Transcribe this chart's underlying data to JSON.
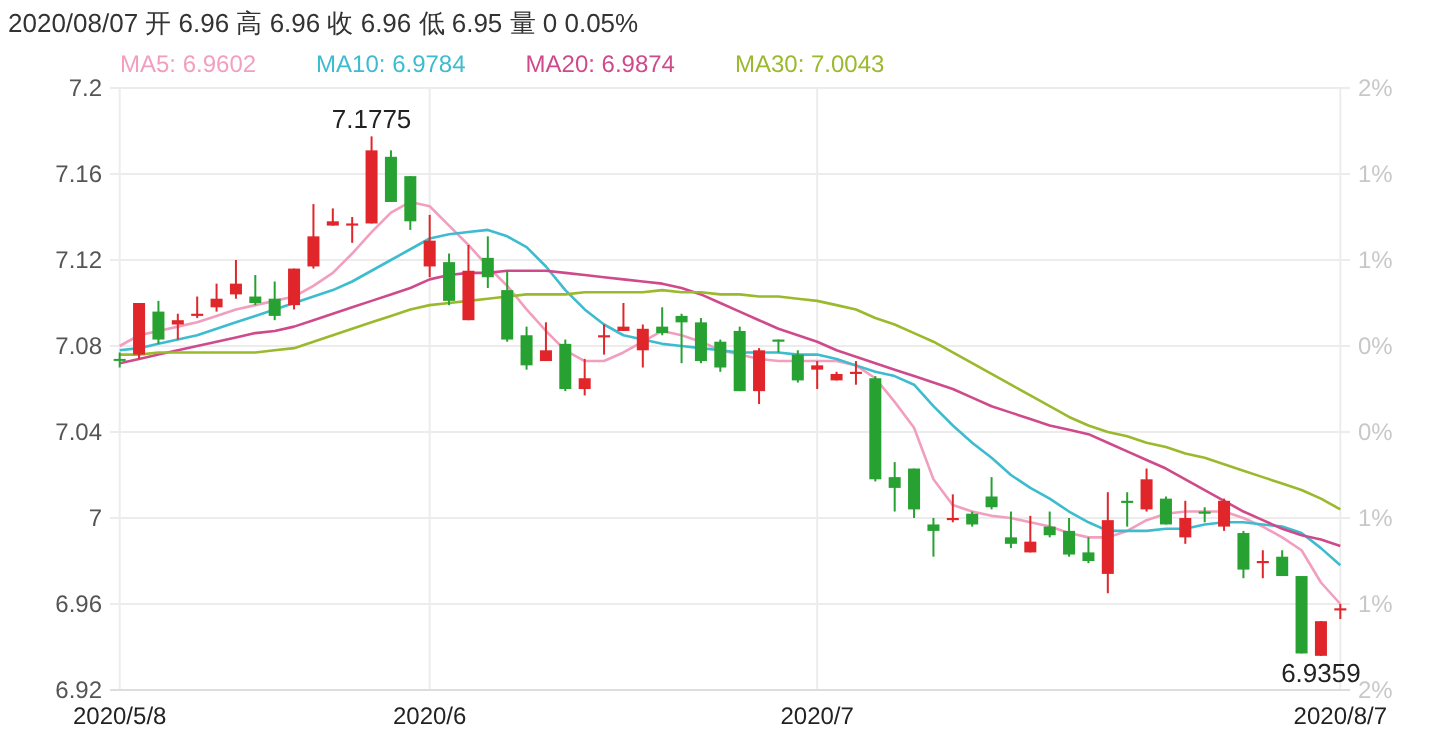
{
  "chart_data": {
    "type": "candlestick",
    "title": "2020/08/07 开 6.96 高 6.96 收 6.96 低 6.95 量 0 0.05%",
    "categories": [
      "2020/5/8",
      null,
      null,
      null,
      null,
      null,
      null,
      null,
      null,
      null,
      null,
      null,
      null,
      null,
      null,
      null,
      "2020/6",
      null,
      null,
      null,
      null,
      null,
      null,
      null,
      null,
      null,
      null,
      null,
      null,
      null,
      null,
      null,
      null,
      null,
      null,
      null,
      "2020/7",
      null,
      null,
      null,
      null,
      null,
      null,
      null,
      null,
      null,
      null,
      null,
      null,
      null,
      null,
      null,
      null,
      null,
      null,
      null,
      null,
      null,
      null,
      null,
      null,
      null,
      null,
      "2020/8/7"
    ],
    "ohlc": [
      [
        7.074,
        7.077,
        7.07,
        7.074
      ],
      [
        7.076,
        7.1,
        7.074,
        7.1
      ],
      [
        7.096,
        7.101,
        7.081,
        7.083
      ],
      [
        7.09,
        7.095,
        7.083,
        7.092
      ],
      [
        7.094,
        7.103,
        7.093,
        7.095
      ],
      [
        7.098,
        7.109,
        7.096,
        7.102
      ],
      [
        7.104,
        7.12,
        7.102,
        7.109
      ],
      [
        7.103,
        7.113,
        7.099,
        7.1
      ],
      [
        7.102,
        7.11,
        7.092,
        7.094
      ],
      [
        7.099,
        7.116,
        7.097,
        7.116
      ],
      [
        7.117,
        7.146,
        7.116,
        7.131
      ],
      [
        7.136,
        7.144,
        7.136,
        7.138
      ],
      [
        7.136,
        7.14,
        7.128,
        7.137
      ],
      [
        7.137,
        7.1775,
        7.137,
        7.171
      ],
      [
        7.168,
        7.171,
        7.147,
        7.147
      ],
      [
        7.159,
        7.159,
        7.134,
        7.138
      ],
      [
        7.117,
        7.141,
        7.112,
        7.129
      ],
      [
        7.119,
        7.123,
        7.099,
        7.101
      ],
      [
        7.092,
        7.127,
        7.092,
        7.115
      ],
      [
        7.121,
        7.131,
        7.107,
        7.112
      ],
      [
        7.106,
        7.115,
        7.082,
        7.083
      ],
      [
        7.085,
        7.089,
        7.069,
        7.071
      ],
      [
        7.073,
        7.091,
        7.073,
        7.078
      ],
      [
        7.081,
        7.083,
        7.059,
        7.06
      ],
      [
        7.06,
        7.074,
        7.057,
        7.065
      ],
      [
        7.084,
        7.09,
        7.076,
        7.085
      ],
      [
        7.087,
        7.1,
        7.087,
        7.089
      ],
      [
        7.078,
        7.09,
        7.07,
        7.088
      ],
      [
        7.089,
        7.098,
        7.085,
        7.086
      ],
      [
        7.094,
        7.095,
        7.072,
        7.091
      ],
      [
        7.091,
        7.093,
        7.072,
        7.073
      ],
      [
        7.082,
        7.083,
        7.068,
        7.07
      ],
      [
        7.087,
        7.089,
        7.059,
        7.059
      ],
      [
        7.059,
        7.079,
        7.053,
        7.078
      ],
      [
        7.083,
        7.083,
        7.077,
        7.082
      ],
      [
        7.076,
        7.078,
        7.063,
        7.064
      ],
      [
        7.069,
        7.073,
        7.06,
        7.071
      ],
      [
        7.064,
        7.068,
        7.064,
        7.067
      ],
      [
        7.067,
        7.073,
        7.062,
        7.068
      ],
      [
        7.065,
        7.066,
        7.017,
        7.018
      ],
      [
        7.019,
        7.026,
        7.003,
        7.014
      ],
      [
        7.023,
        7.023,
        7.0,
        7.004
      ],
      [
        6.997,
        7.0,
        6.982,
        6.994
      ],
      [
        6.999,
        7.011,
        6.998,
        7.0
      ],
      [
        7.002,
        7.003,
        6.996,
        6.997
      ],
      [
        7.01,
        7.019,
        7.004,
        7.005
      ],
      [
        6.991,
        7.003,
        6.986,
        6.988
      ],
      [
        6.984,
        7.001,
        6.984,
        6.989
      ],
      [
        6.996,
        7.003,
        6.991,
        6.992
      ],
      [
        6.994,
        7.0,
        6.982,
        6.983
      ],
      [
        6.984,
        6.991,
        6.979,
        6.98
      ],
      [
        6.974,
        7.012,
        6.965,
        6.999
      ],
      [
        7.008,
        7.012,
        6.996,
        7.007
      ],
      [
        7.004,
        7.023,
        7.003,
        7.018
      ],
      [
        7.009,
        7.01,
        6.997,
        6.997
      ],
      [
        6.991,
        7.008,
        6.988,
        7.0
      ],
      [
        7.003,
        7.005,
        6.998,
        7.002
      ],
      [
        6.996,
        7.009,
        6.994,
        7.008
      ],
      [
        6.993,
        6.994,
        6.972,
        6.976
      ],
      [
        6.979,
        6.985,
        6.972,
        6.98
      ],
      [
        6.982,
        6.985,
        6.973,
        6.973
      ],
      [
        6.973,
        6.973,
        6.937,
        6.937
      ],
      [
        6.9359,
        6.952,
        6.9359,
        6.952
      ],
      [
        6.957,
        6.96,
        6.953,
        6.958
      ]
    ],
    "colors": [
      "#27a132",
      "#e0262a",
      "#27a132",
      "#e0262a",
      "#e0262a",
      "#e0262a",
      "#e0262a",
      "#27a132",
      "#27a132",
      "#e0262a",
      "#e0262a",
      "#e0262a",
      "#e0262a",
      "#e0262a",
      "#27a132",
      "#27a132",
      "#e0262a",
      "#27a132",
      "#e0262a",
      "#27a132",
      "#27a132",
      "#27a132",
      "#e0262a",
      "#27a132",
      "#e0262a",
      "#e0262a",
      "#e0262a",
      "#e0262a",
      "#27a132",
      "#27a132",
      "#27a132",
      "#27a132",
      "#27a132",
      "#e0262a",
      "#27a132",
      "#27a132",
      "#e0262a",
      "#e0262a",
      "#e0262a",
      "#27a132",
      "#27a132",
      "#27a132",
      "#27a132",
      "#e0262a",
      "#27a132",
      "#27a132",
      "#27a132",
      "#e0262a",
      "#27a132",
      "#27a132",
      "#27a132",
      "#e0262a",
      "#27a132",
      "#e0262a",
      "#27a132",
      "#e0262a",
      "#27a132",
      "#e0262a",
      "#27a132",
      "#e0262a",
      "#27a132",
      "#27a132",
      "#e0262a",
      "#e0262a"
    ],
    "series": [
      {
        "name": "MA5: 6.9602",
        "type": "line",
        "color": "#f29fbf",
        "values": [
          7.08,
          7.085,
          7.087,
          7.089,
          7.091,
          7.094,
          7.097,
          7.099,
          7.101,
          7.103,
          7.108,
          7.114,
          7.123,
          7.133,
          7.142,
          7.147,
          7.145,
          7.136,
          7.127,
          7.117,
          7.108,
          7.097,
          7.087,
          7.078,
          7.073,
          7.073,
          7.077,
          7.082,
          7.087,
          7.085,
          7.082,
          7.078,
          7.076,
          7.074,
          7.073,
          7.073,
          7.073,
          7.073,
          7.071,
          7.065,
          7.054,
          7.042,
          7.018,
          7.006,
          7.003,
          7.001,
          7.0,
          6.998,
          6.996,
          6.993,
          6.991,
          6.991,
          6.994,
          6.999,
          7.002,
          7.003,
          7.003,
          7.003,
          7.0,
          6.996,
          6.991,
          6.985,
          6.97,
          6.96
        ]
      },
      {
        "name": "MA10: 6.9784",
        "type": "line",
        "color": "#3dbccf",
        "values": [
          7.078,
          7.079,
          7.081,
          7.083,
          7.085,
          7.088,
          7.091,
          7.094,
          7.097,
          7.1,
          7.103,
          7.106,
          7.11,
          7.115,
          7.12,
          7.125,
          7.13,
          7.132,
          7.133,
          7.134,
          7.131,
          7.126,
          7.117,
          7.106,
          7.097,
          7.09,
          7.085,
          7.083,
          7.081,
          7.08,
          7.079,
          7.078,
          7.077,
          7.077,
          7.077,
          7.076,
          7.076,
          7.074,
          7.071,
          7.068,
          7.066,
          7.062,
          7.052,
          7.043,
          7.035,
          7.028,
          7.02,
          7.014,
          7.009,
          7.003,
          6.998,
          6.994,
          6.994,
          6.994,
          6.995,
          6.995,
          6.997,
          6.998,
          6.998,
          6.997,
          6.996,
          6.993,
          6.986,
          6.978
        ]
      },
      {
        "name": "MA20: 6.9874",
        "type": "line",
        "color": "#cf4a8a",
        "values": [
          7.072,
          7.074,
          7.076,
          7.078,
          7.08,
          7.082,
          7.084,
          7.086,
          7.087,
          7.089,
          7.092,
          7.095,
          7.098,
          7.101,
          7.104,
          7.107,
          7.111,
          7.113,
          7.114,
          7.114,
          7.115,
          7.115,
          7.115,
          7.114,
          7.113,
          7.112,
          7.111,
          7.11,
          7.109,
          7.107,
          7.104,
          7.1,
          7.096,
          7.092,
          7.088,
          7.085,
          7.082,
          7.078,
          7.075,
          7.072,
          7.069,
          7.066,
          7.063,
          7.06,
          7.056,
          7.052,
          7.049,
          7.046,
          7.043,
          7.041,
          7.039,
          7.035,
          7.031,
          7.027,
          7.023,
          7.018,
          7.013,
          7.008,
          7.003,
          6.999,
          6.995,
          6.992,
          6.99,
          6.987
        ]
      },
      {
        "name": "MA30: 7.0043",
        "type": "line",
        "color": "#9ab92c",
        "values": [
          7.076,
          7.076,
          7.077,
          7.077,
          7.077,
          7.077,
          7.077,
          7.077,
          7.078,
          7.079,
          7.082,
          7.085,
          7.088,
          7.091,
          7.094,
          7.097,
          7.099,
          7.1,
          7.101,
          7.102,
          7.103,
          7.104,
          7.104,
          7.104,
          7.105,
          7.105,
          7.105,
          7.105,
          7.106,
          7.105,
          7.105,
          7.104,
          7.104,
          7.103,
          7.103,
          7.102,
          7.101,
          7.099,
          7.097,
          7.093,
          7.09,
          7.086,
          7.082,
          7.077,
          7.072,
          7.067,
          7.062,
          7.057,
          7.052,
          7.047,
          7.043,
          7.04,
          7.038,
          7.035,
          7.033,
          7.03,
          7.028,
          7.025,
          7.022,
          7.019,
          7.016,
          7.013,
          7.009,
          7.004
        ]
      }
    ],
    "ylim": [
      6.92,
      7.2
    ],
    "yticks": [
      7.2,
      7.16,
      7.12,
      7.08,
      7.04,
      7,
      6.96,
      6.92
    ],
    "y2lim": [
      -1.983,
      1.983
    ],
    "y2ticks": [
      {
        "value": 1.983,
        "label": "2%"
      },
      {
        "value": 1.416,
        "label": "1%"
      },
      {
        "value": 0.85,
        "label": "1%"
      },
      {
        "value": 0.283,
        "label": "0%"
      },
      {
        "value": -0.283,
        "label": "0%"
      },
      {
        "value": -0.85,
        "label": "1%"
      },
      {
        "value": -1.416,
        "label": "1%"
      },
      {
        "value": -1.983,
        "label": "2%"
      }
    ],
    "annotations": [
      {
        "text": "7.1775",
        "y": 7.1775
      },
      {
        "text": "6.9359",
        "y": 6.9359
      }
    ],
    "grid": true,
    "legend": "top left"
  }
}
